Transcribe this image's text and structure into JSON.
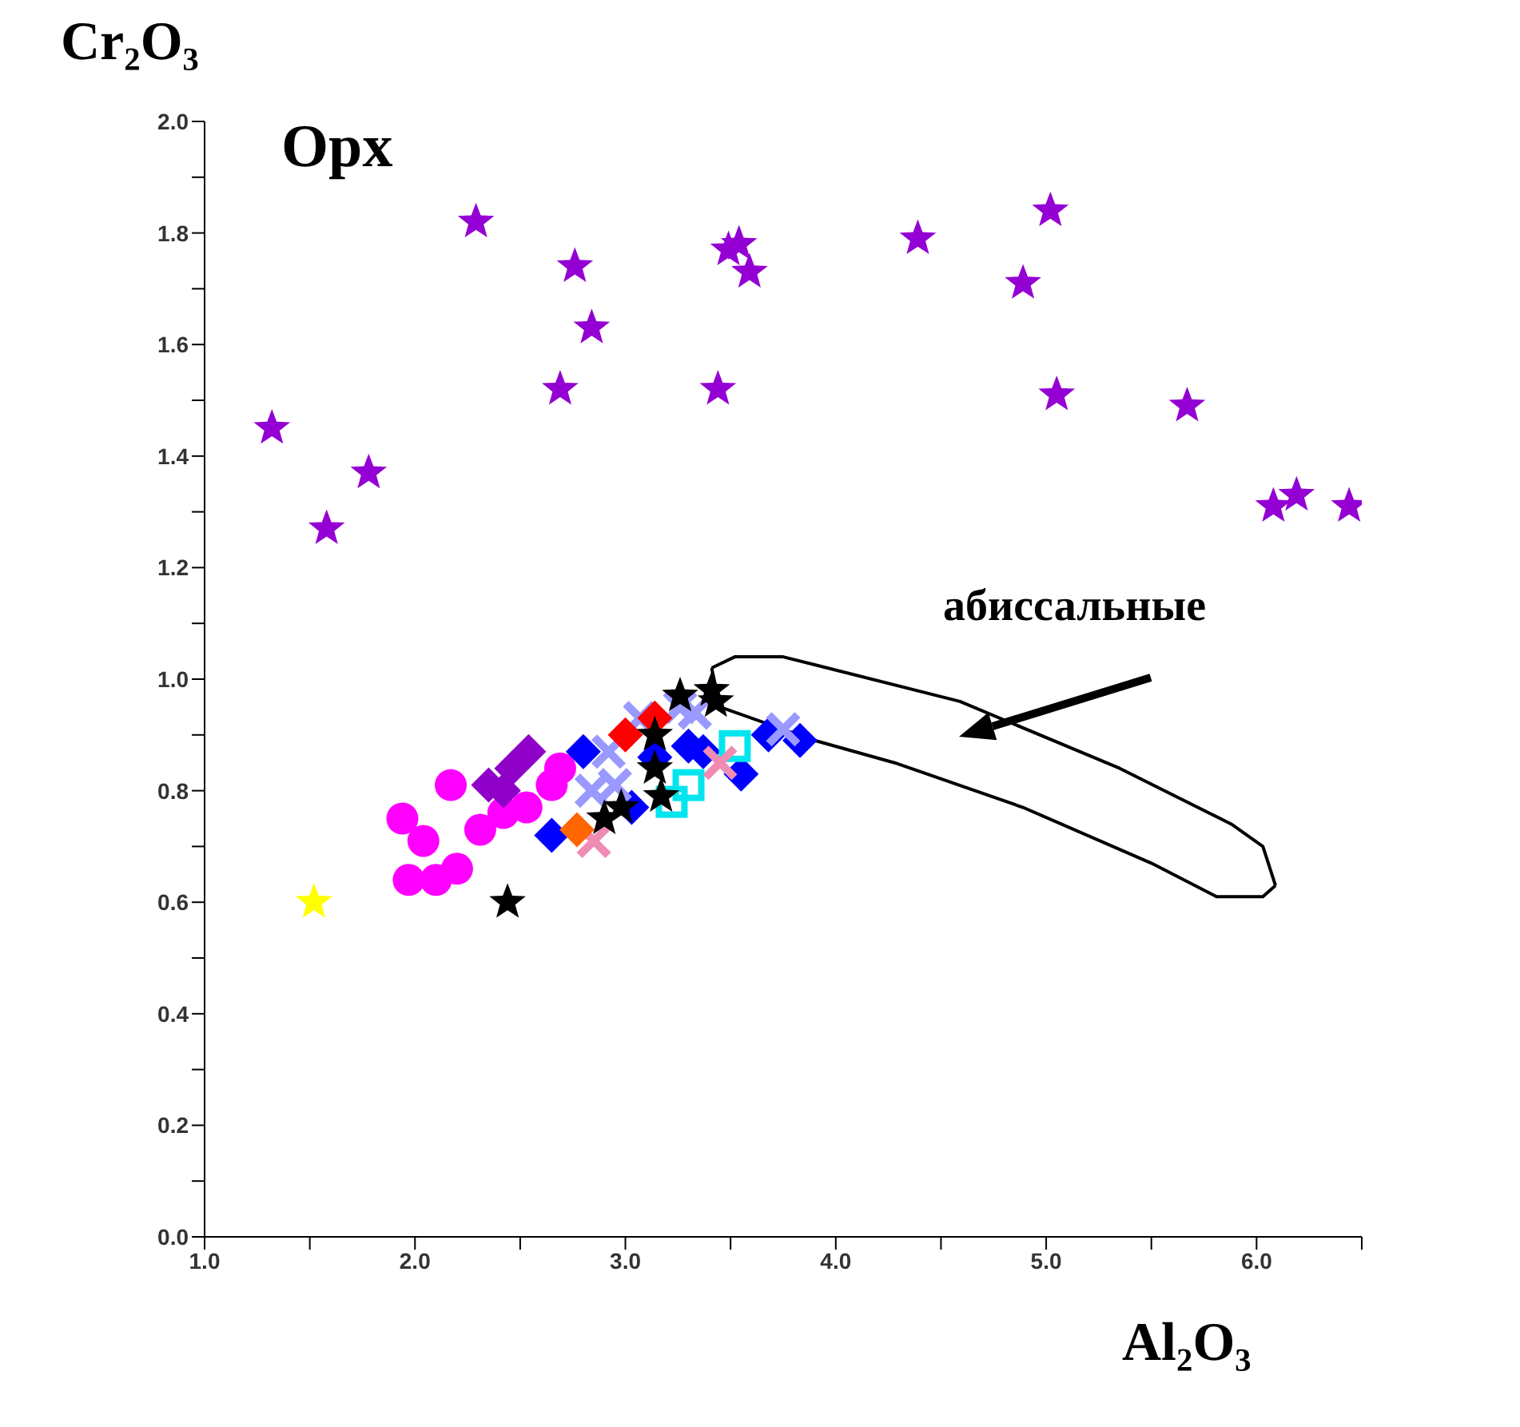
{
  "chart_data": {
    "type": "scatter",
    "title": "Opx",
    "xlabel": "Al₂O₃",
    "ylabel": "Cr₂O₃",
    "xlim": [
      1,
      6.5
    ],
    "ylim": [
      0,
      2
    ],
    "xticks": [
      {
        "value": 1,
        "label": "1.0"
      },
      {
        "value": 1.5,
        "label": null
      },
      {
        "value": 2,
        "label": "2.0"
      },
      {
        "value": 2.5,
        "label": null
      },
      {
        "value": 3,
        "label": "3.0"
      },
      {
        "value": 3.5,
        "label": null
      },
      {
        "value": 4,
        "label": "4.0"
      },
      {
        "value": 4.5,
        "label": null
      },
      {
        "value": 5,
        "label": "5.0"
      },
      {
        "value": 5.5,
        "label": null
      },
      {
        "value": 6,
        "label": "6.0"
      },
      {
        "value": 6.5,
        "label": null
      }
    ],
    "yticks": [
      {
        "value": 0,
        "label": "0.0"
      },
      {
        "value": 0.1,
        "label": null
      },
      {
        "value": 0.2,
        "label": "0.2"
      },
      {
        "value": 0.3,
        "label": null
      },
      {
        "value": 0.4,
        "label": "0.4"
      },
      {
        "value": 0.5,
        "label": null
      },
      {
        "value": 0.6,
        "label": "0.6"
      },
      {
        "value": 0.7,
        "label": null
      },
      {
        "value": 0.8,
        "label": "0.8"
      },
      {
        "value": 0.9,
        "label": null
      },
      {
        "value": 1,
        "label": "1.0"
      },
      {
        "value": 1.1,
        "label": null
      },
      {
        "value": 1.2,
        "label": "1.2"
      },
      {
        "value": 1.3,
        "label": null
      },
      {
        "value": 1.4,
        "label": "1.4"
      },
      {
        "value": 1.5,
        "label": null
      },
      {
        "value": 1.6,
        "label": "1.6"
      },
      {
        "value": 1.7,
        "label": null
      },
      {
        "value": 1.8,
        "label": "1.8"
      },
      {
        "value": 1.9,
        "label": null
      },
      {
        "value": 2,
        "label": "2.0"
      }
    ],
    "grid": false,
    "annotations": [
      "абиссальные"
    ],
    "series": [
      {
        "type": "line",
        "marker": "none",
        "color": "#000000",
        "x": [
          3.41,
          3.52,
          3.75,
          4.59,
          5.35,
          5.88,
          6.03,
          6.09
        ],
        "values": [
          1.02,
          1.04,
          1.04,
          0.96,
          0.84,
          0.74,
          0.7,
          0.63
        ]
      },
      {
        "type": "line",
        "marker": "none",
        "color": "#000000",
        "x": [
          3.41,
          3.45,
          3.9,
          4.28,
          4.89,
          5.5,
          5.81,
          6.03,
          6.09
        ],
        "values": [
          1.02,
          0.95,
          0.89,
          0.85,
          0.77,
          0.67,
          0.61,
          0.61,
          0.63
        ]
      },
      {
        "marker": "star",
        "color": "#9400d3",
        "x": [
          1.32,
          1.58,
          1.78,
          2.29,
          2.76,
          2.84,
          2.69,
          3.44,
          3.49,
          3.54,
          3.59,
          4.39,
          4.89,
          5.02,
          5.05,
          5.67,
          6.08,
          6.19,
          6.44
        ],
        "values": [
          1.45,
          1.27,
          1.37,
          1.82,
          1.74,
          1.63,
          1.52,
          1.52,
          1.77,
          1.78,
          1.73,
          1.79,
          1.71,
          1.84,
          1.51,
          1.49,
          1.31,
          1.33,
          1.31
        ]
      },
      {
        "marker": "circle",
        "color": "#ff00ff",
        "x": [
          1.94,
          2.04,
          1.97,
          2.1,
          2.2,
          2.17,
          2.31,
          2.42,
          2.53,
          2.65,
          2.69
        ],
        "values": [
          0.75,
          0.71,
          0.64,
          0.64,
          0.66,
          0.81,
          0.73,
          0.76,
          0.77,
          0.81,
          0.84
        ]
      },
      {
        "marker": "diamond",
        "color": "#8f00c8",
        "x": [
          2.35,
          2.46,
          2.54,
          2.42
        ],
        "values": [
          0.81,
          0.84,
          0.87,
          0.8
        ]
      },
      {
        "marker": "diamond",
        "color": "#0000ff",
        "x": [
          2.65,
          2.8,
          3.03,
          3.3,
          3.37,
          3.55,
          3.68,
          3.83,
          3.14
        ],
        "values": [
          0.72,
          0.87,
          0.77,
          0.88,
          0.87,
          0.83,
          0.9,
          0.89,
          0.86
        ]
      },
      {
        "marker": "cross",
        "color": "#9999ff",
        "x": [
          2.92,
          2.95,
          2.84,
          3.07,
          3.26,
          3.33,
          3.75
        ],
        "values": [
          0.87,
          0.81,
          0.8,
          0.93,
          0.95,
          0.94,
          0.91
        ]
      },
      {
        "marker": "square",
        "color": "#00e5ee",
        "x": [
          3.22,
          3.3,
          3.52
        ],
        "values": [
          0.78,
          0.81,
          0.88
        ]
      },
      {
        "marker": "cross",
        "color": "#f08cb4",
        "x": [
          2.85,
          3.45
        ],
        "values": [
          0.71,
          0.85
        ]
      },
      {
        "marker": "diamond",
        "color": "#ff6600",
        "x": [
          2.77
        ],
        "values": [
          0.73
        ]
      },
      {
        "marker": "diamond",
        "color": "#ff0000",
        "x": [
          3.0,
          3.14
        ],
        "values": [
          0.9,
          0.93
        ]
      },
      {
        "marker": "star",
        "color": "#000000",
        "x": [
          2.44,
          3.26,
          3.41,
          3.43,
          2.9,
          2.98,
          3.14,
          3.14,
          3.17
        ],
        "values": [
          0.6,
          0.97,
          0.98,
          0.96,
          0.75,
          0.77,
          0.84,
          0.9,
          0.79
        ]
      },
      {
        "marker": "star",
        "color": "#ffff00",
        "x": [
          1.52
        ],
        "values": [
          0.6
        ]
      }
    ]
  }
}
